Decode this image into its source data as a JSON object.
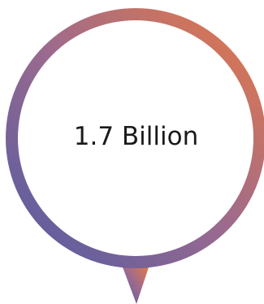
{
  "stat": {
    "value": "1.7 Billion"
  },
  "colors": {
    "gradient_start": "#5a5ea0",
    "gradient_mid": "#9a6a90",
    "gradient_end": "#e0764a",
    "text": "#1a1a1a",
    "background": "#ffffff"
  },
  "icons": {
    "bubble": "speech-bubble-ring-icon"
  }
}
